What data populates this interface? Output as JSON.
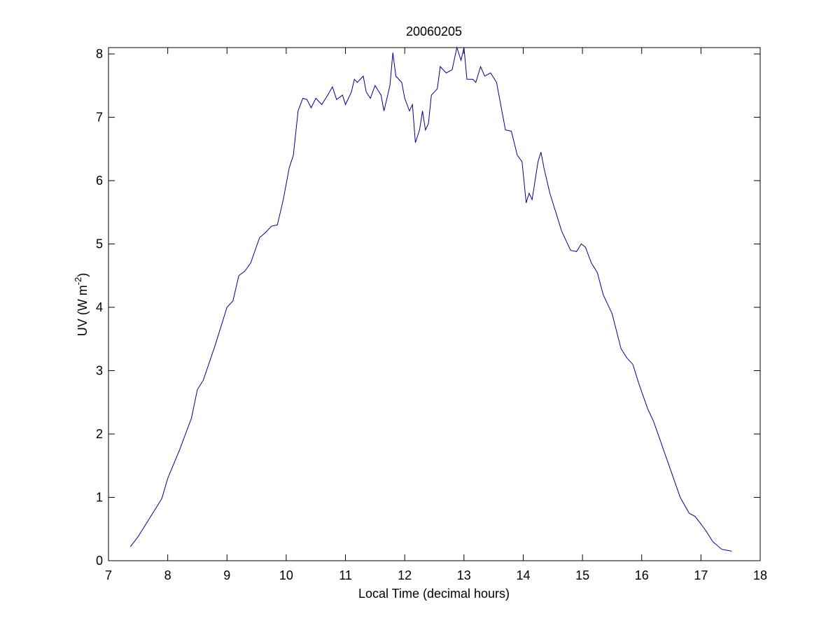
{
  "chart_data": {
    "type": "line",
    "title": "20060205",
    "xlabel": "Local Time (decimal hours)",
    "ylabel": [
      "UV (W m",
      "-2",
      ")"
    ],
    "xlim": [
      7,
      18
    ],
    "xticks": [
      7,
      8,
      9,
      10,
      11,
      12,
      13,
      14,
      15,
      16,
      17,
      18
    ],
    "ylim": [
      0,
      8.1
    ],
    "yticks": [
      0,
      1,
      2,
      3,
      4,
      5,
      6,
      7,
      8
    ],
    "grid": false,
    "series": [
      {
        "color": "#00008b",
        "x": [
          7.37,
          7.5,
          7.7,
          7.9,
          8.0,
          8.2,
          8.4,
          8.5,
          8.6,
          8.8,
          9.0,
          9.1,
          9.2,
          9.3,
          9.4,
          9.55,
          9.65,
          9.75,
          9.85,
          9.95,
          10.05,
          10.12,
          10.2,
          10.28,
          10.35,
          10.42,
          10.5,
          10.6,
          10.7,
          10.78,
          10.85,
          10.95,
          11.0,
          11.1,
          11.15,
          11.2,
          11.3,
          11.35,
          11.42,
          11.5,
          11.6,
          11.65,
          11.75,
          11.8,
          11.85,
          11.95,
          12.0,
          12.08,
          12.13,
          12.18,
          12.25,
          12.3,
          12.35,
          12.4,
          12.45,
          12.55,
          12.6,
          12.7,
          12.8,
          12.88,
          12.95,
          13.0,
          13.05,
          13.15,
          13.2,
          13.28,
          13.35,
          13.45,
          13.55,
          13.6,
          13.7,
          13.8,
          13.9,
          13.98,
          14.05,
          14.1,
          14.15,
          14.25,
          14.3,
          14.35,
          14.45,
          14.55,
          14.65,
          14.75,
          14.8,
          14.9,
          14.98,
          15.05,
          15.15,
          15.25,
          15.35,
          15.5,
          15.65,
          15.75,
          15.85,
          15.95,
          16.1,
          16.2,
          16.35,
          16.5,
          16.65,
          16.8,
          16.9,
          17.0,
          17.1,
          17.2,
          17.35,
          17.52
        ],
        "values": [
          0.22,
          0.38,
          0.68,
          0.98,
          1.3,
          1.75,
          2.25,
          2.7,
          2.85,
          3.4,
          4.0,
          4.1,
          4.5,
          4.57,
          4.7,
          5.1,
          5.18,
          5.28,
          5.3,
          5.7,
          6.2,
          6.4,
          7.1,
          7.3,
          7.28,
          7.15,
          7.3,
          7.2,
          7.35,
          7.48,
          7.28,
          7.35,
          7.2,
          7.4,
          7.6,
          7.55,
          7.65,
          7.4,
          7.3,
          7.5,
          7.35,
          7.1,
          7.5,
          8.02,
          7.65,
          7.55,
          7.3,
          7.1,
          7.2,
          6.6,
          6.8,
          7.1,
          6.8,
          6.9,
          7.35,
          7.45,
          7.8,
          7.7,
          7.75,
          8.1,
          7.9,
          8.1,
          7.6,
          7.6,
          7.55,
          7.8,
          7.65,
          7.7,
          7.55,
          7.3,
          6.8,
          6.78,
          6.4,
          6.3,
          5.65,
          5.8,
          5.7,
          6.3,
          6.45,
          6.2,
          5.8,
          5.5,
          5.2,
          5.0,
          4.9,
          4.88,
          5.0,
          4.95,
          4.7,
          4.55,
          4.2,
          3.9,
          3.35,
          3.2,
          3.1,
          2.8,
          2.4,
          2.2,
          1.8,
          1.4,
          1.0,
          0.75,
          0.7,
          0.58,
          0.45,
          0.3,
          0.18,
          0.15
        ]
      }
    ]
  }
}
